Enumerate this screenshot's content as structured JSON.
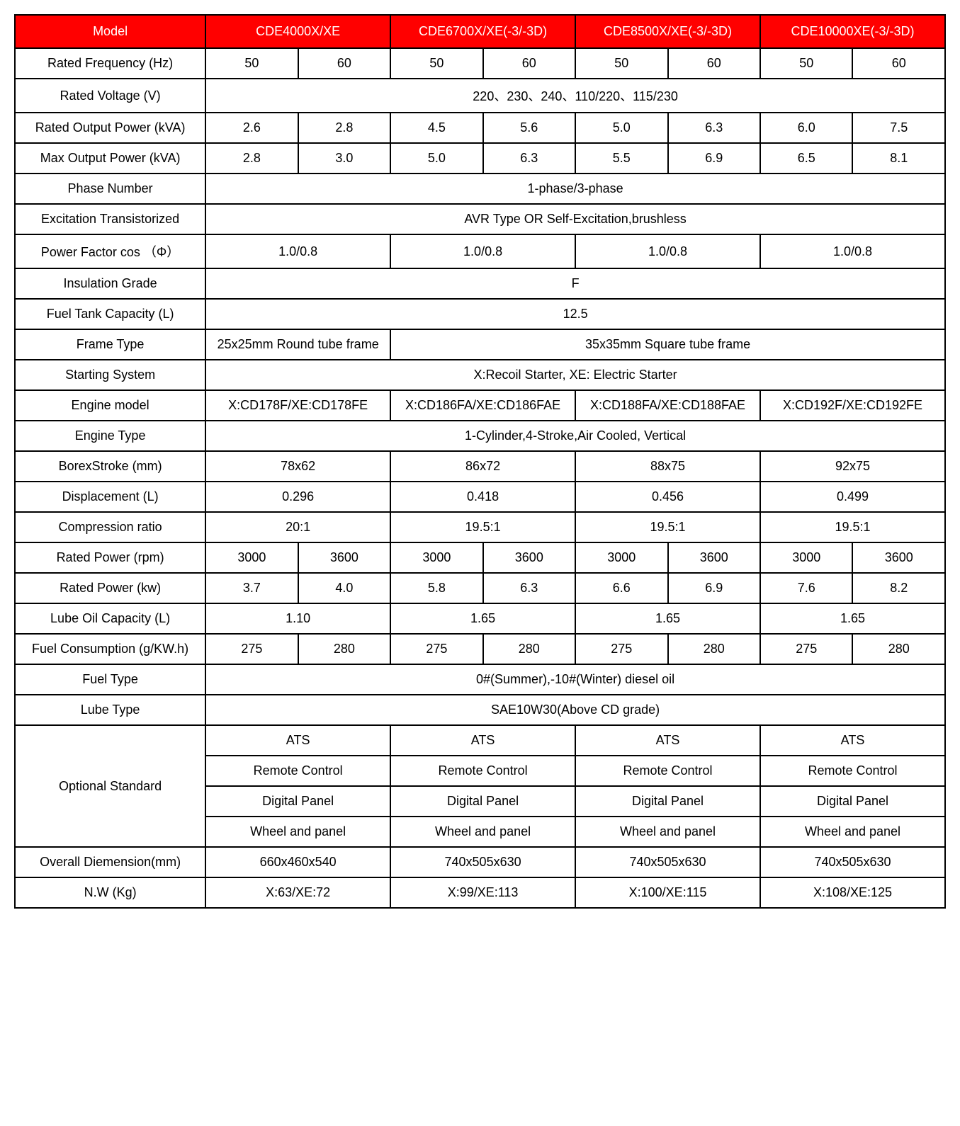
{
  "header": {
    "model": "Model",
    "m1": "CDE4000X/XE",
    "m2": "CDE6700X/XE(-3/-3D)",
    "m3": "CDE8500X/XE(-3/-3D)",
    "m4": "CDE10000XE(-3/-3D)"
  },
  "rows": {
    "rated_freq": {
      "label": "Rated Frequency (Hz)",
      "v": [
        "50",
        "60",
        "50",
        "60",
        "50",
        "60",
        "50",
        "60"
      ]
    },
    "rated_voltage": {
      "label": "Rated Voltage (V)",
      "value": "220、230、240、110/220、115/230"
    },
    "rated_output": {
      "label": "Rated Output Power (kVA)",
      "v": [
        "2.6",
        "2.8",
        "4.5",
        "5.6",
        "5.0",
        "6.3",
        "6.0",
        "7.5"
      ]
    },
    "max_output": {
      "label": "Max Output Power (kVA)",
      "v": [
        "2.8",
        "3.0",
        "5.0",
        "6.3",
        "5.5",
        "6.9",
        "6.5",
        "8.1"
      ]
    },
    "phase": {
      "label": "Phase Number",
      "value": "1-phase/3-phase"
    },
    "excitation": {
      "label": "Excitation Transistorized",
      "value": "AVR Type OR Self-Excitation,brushless"
    },
    "power_factor": {
      "label": "Power Factor cos （Φ）",
      "v": [
        "1.0/0.8",
        "1.0/0.8",
        "1.0/0.8",
        "1.0/0.8"
      ]
    },
    "insulation": {
      "label": "Insulation Grade",
      "value": "F"
    },
    "fuel_tank": {
      "label": "Fuel Tank Capacity (L)",
      "value": "12.5"
    },
    "frame_type": {
      "label": "Frame Type",
      "v1": "25x25mm Round tube frame",
      "v2": "35x35mm Square tube frame"
    },
    "starting": {
      "label": "Starting System",
      "value": "X:Recoil Starter, XE: Electric Starter"
    },
    "engine_model": {
      "label": "Engine model",
      "v": [
        "X:CD178F/XE:CD178FE",
        "X:CD186FA/XE:CD186FAE",
        "X:CD188FA/XE:CD188FAE",
        "X:CD192F/XE:CD192FE"
      ]
    },
    "engine_type": {
      "label": "Engine Type",
      "value": "1-Cylinder,4-Stroke,Air Cooled, Vertical"
    },
    "bore_stroke": {
      "label": "BorexStroke (mm)",
      "v": [
        "78x62",
        "86x72",
        "88x75",
        "92x75"
      ]
    },
    "displacement": {
      "label": "Displacement (L)",
      "v": [
        "0.296",
        "0.418",
        "0.456",
        "0.499"
      ]
    },
    "compression": {
      "label": "Compression ratio",
      "v": [
        "20:1",
        "19.5:1",
        "19.5:1",
        "19.5:1"
      ]
    },
    "rated_rpm": {
      "label": "Rated Power (rpm)",
      "v": [
        "3000",
        "3600",
        "3000",
        "3600",
        "3000",
        "3600",
        "3000",
        "3600"
      ]
    },
    "rated_kw": {
      "label": "Rated Power (kw)",
      "v": [
        "3.7",
        "4.0",
        "5.8",
        "6.3",
        "6.6",
        "6.9",
        "7.6",
        "8.2"
      ]
    },
    "lube_cap": {
      "label": "Lube Oil Capacity (L)",
      "v": [
        "1.10",
        "1.65",
        "1.65",
        "1.65"
      ]
    },
    "fuel_cons": {
      "label": "Fuel Consumption (g/KW.h)",
      "v": [
        "275",
        "280",
        "275",
        "280",
        "275",
        "280",
        "275",
        "280"
      ]
    },
    "fuel_type": {
      "label": "Fuel Type",
      "value": "0#(Summer),-10#(Winter) diesel oil"
    },
    "lube_type": {
      "label": "Lube Type",
      "value": "SAE10W30(Above CD grade)"
    },
    "optional": {
      "label": "Optional Standard",
      "r1": [
        "ATS",
        "ATS",
        "ATS",
        "ATS"
      ],
      "r2": [
        "Remote Control",
        "Remote Control",
        "Remote Control",
        "Remote Control"
      ],
      "r3": [
        "Digital Panel",
        "Digital Panel",
        "Digital Panel",
        "Digital Panel"
      ],
      "r4": [
        "Wheel and panel",
        "Wheel and panel",
        "Wheel and panel",
        "Wheel and panel"
      ]
    },
    "dimension": {
      "label": "Overall Diemension(mm)",
      "v": [
        "660x460x540",
        "740x505x630",
        "740x505x630",
        "740x505x630"
      ]
    },
    "nw": {
      "label": "N.W (Kg)",
      "v": [
        "X:63/XE:72",
        "X:99/XE:113",
        "X:100/XE:115",
        "X:108/XE:125"
      ]
    }
  },
  "styling": {
    "header_bg": "#ff0000",
    "header_fg": "#ffffff",
    "border_color": "#000000",
    "border_width": 2,
    "cell_fontsize": 18,
    "font_family": "Arial, sans-serif",
    "background": "#ffffff"
  }
}
